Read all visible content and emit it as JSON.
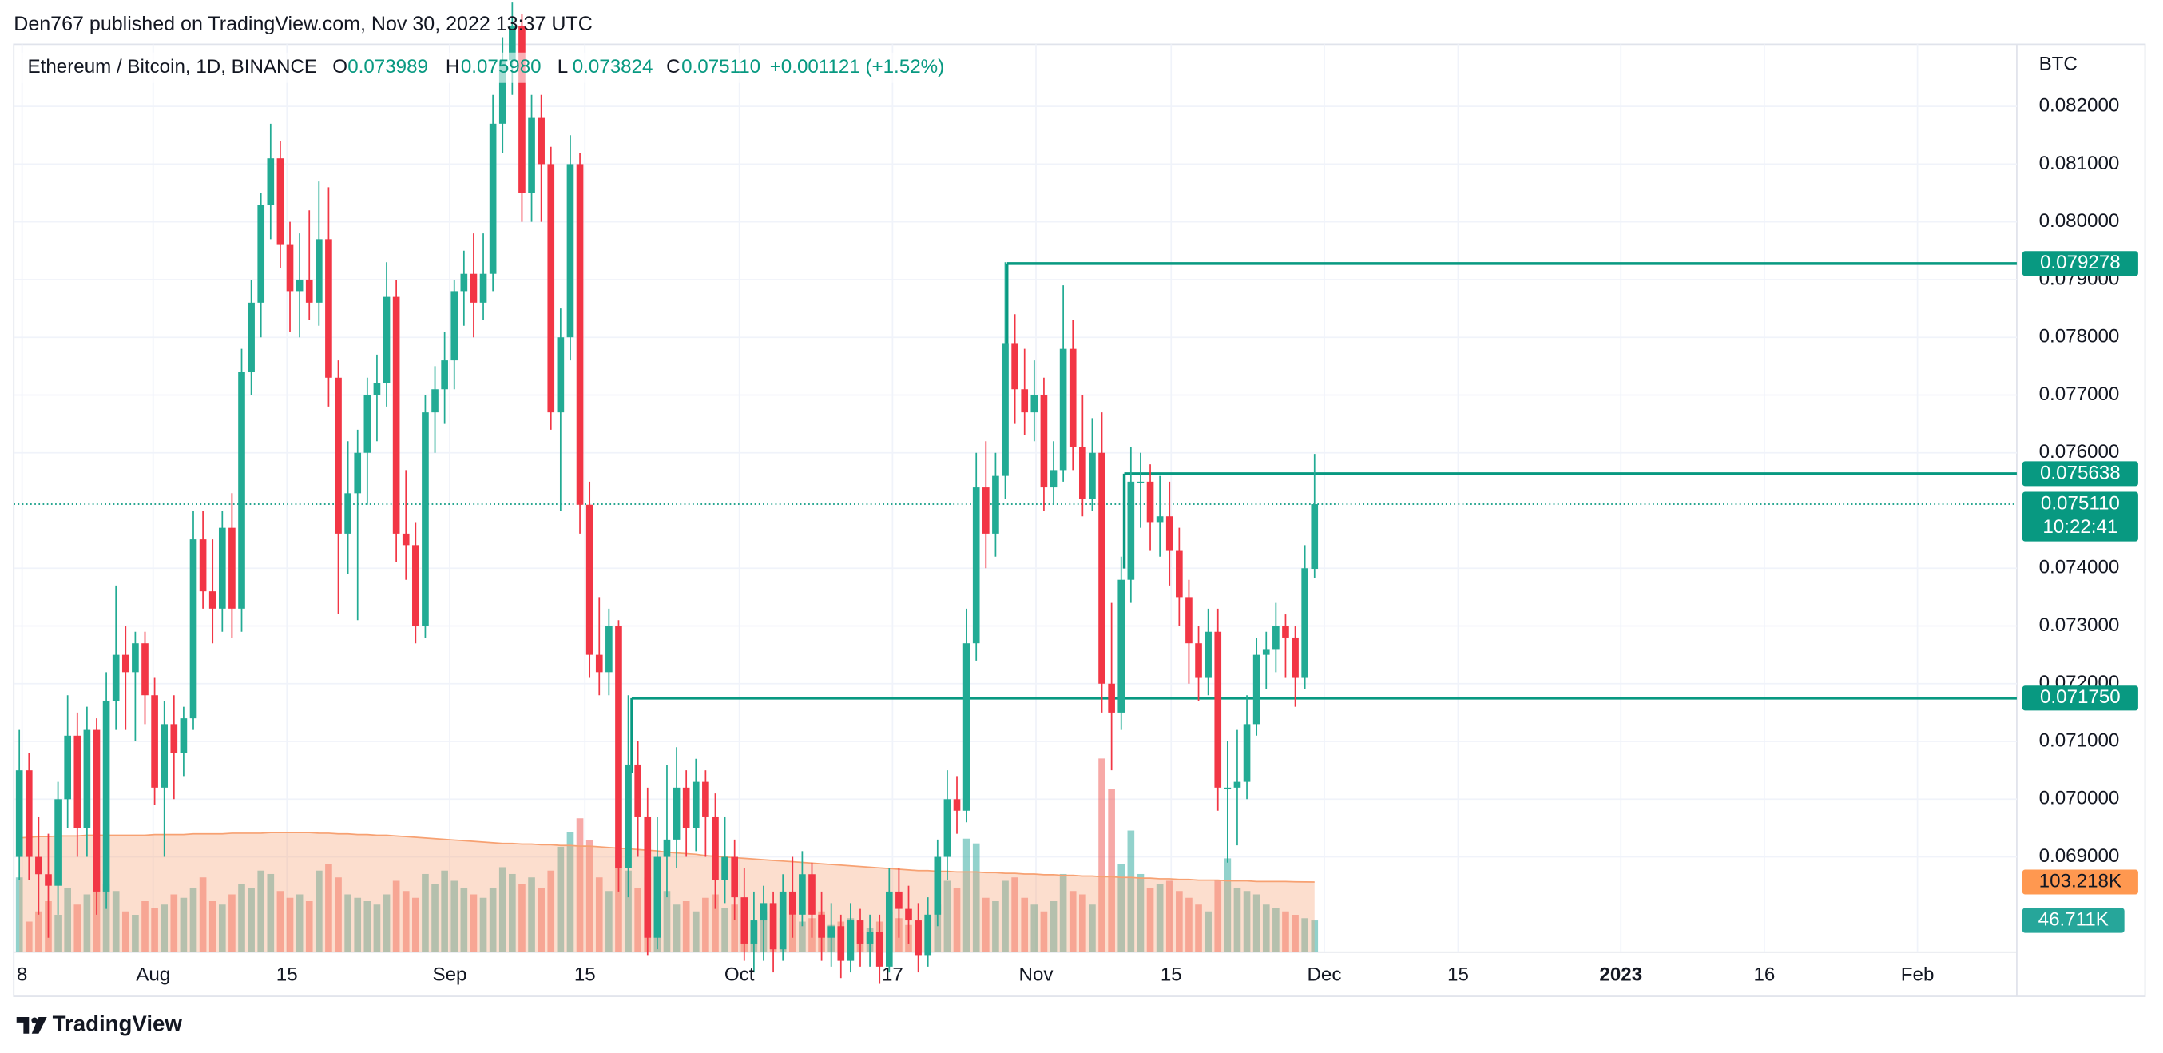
{
  "header": "Den767 published on TradingView.com, Nov 30, 2022 13:37 UTC",
  "footer": "TradingView",
  "chart_data": {
    "type": "candlestick",
    "legend": {
      "symbol": "Ethereum / Bitcoin, 1D, BINANCE",
      "open_label": "O",
      "open": "0.073989",
      "high_label": "H",
      "high": "0.075980",
      "low_label": "L",
      "low": "0.073824",
      "close_label": "C",
      "close": "0.075110",
      "change": "+0.001121 (+1.52%)"
    },
    "y_unit": "BTC",
    "ylim": [
      0.06735,
      0.083076
    ],
    "yticks": [
      {
        "value": 0.069,
        "label": "0.069000"
      },
      {
        "value": 0.07,
        "label": "0.070000"
      },
      {
        "value": 0.071,
        "label": "0.071000"
      },
      {
        "value": 0.072,
        "label": "0.072000"
      },
      {
        "value": 0.073,
        "label": "0.073000"
      },
      {
        "value": 0.074,
        "label": "0.074000"
      },
      {
        "value": 0.076,
        "label": "0.076000"
      },
      {
        "value": 0.077,
        "label": "0.077000"
      },
      {
        "value": 0.078,
        "label": "0.078000"
      },
      {
        "value": 0.079,
        "label": "0.079000"
      },
      {
        "value": 0.08,
        "label": "0.080000"
      },
      {
        "value": 0.081,
        "label": "0.081000"
      },
      {
        "value": 0.082,
        "label": "0.082000"
      }
    ],
    "xticks": [
      "8",
      "Aug",
      "15",
      "Sep",
      "15",
      "Oct",
      "17",
      "Nov",
      "15",
      "Dec",
      "15",
      "2023",
      "16",
      "Feb"
    ],
    "grid": true,
    "up_color": "#22ab94",
    "down_color": "#f23645",
    "candles": [
      [
        0.069,
        0.0712,
        0.0686,
        0.0705
      ],
      [
        0.0705,
        0.0708,
        0.0686,
        0.069
      ],
      [
        0.069,
        0.0697,
        0.068,
        0.0687
      ],
      [
        0.0687,
        0.0694,
        0.0676,
        0.0685
      ],
      [
        0.0685,
        0.0703,
        0.068,
        0.07
      ],
      [
        0.07,
        0.0718,
        0.0695,
        0.0711
      ],
      [
        0.0711,
        0.0715,
        0.069,
        0.0695
      ],
      [
        0.0695,
        0.0716,
        0.069,
        0.0712
      ],
      [
        0.0712,
        0.0714,
        0.068,
        0.0684
      ],
      [
        0.0684,
        0.0722,
        0.0681,
        0.0717
      ],
      [
        0.0717,
        0.0737,
        0.0712,
        0.0725
      ],
      [
        0.0725,
        0.073,
        0.0712,
        0.0722
      ],
      [
        0.0722,
        0.0729,
        0.071,
        0.0727
      ],
      [
        0.0727,
        0.0729,
        0.0713,
        0.0718
      ],
      [
        0.0718,
        0.0721,
        0.0699,
        0.0702
      ],
      [
        0.0702,
        0.0717,
        0.069,
        0.0713
      ],
      [
        0.0713,
        0.0718,
        0.07,
        0.0708
      ],
      [
        0.0708,
        0.0716,
        0.0704,
        0.0714
      ],
      [
        0.0714,
        0.075,
        0.0712,
        0.0745
      ],
      [
        0.0745,
        0.075,
        0.0733,
        0.0736
      ],
      [
        0.0736,
        0.0745,
        0.0727,
        0.0733
      ],
      [
        0.0733,
        0.075,
        0.0729,
        0.0747
      ],
      [
        0.0747,
        0.0753,
        0.0728,
        0.0733
      ],
      [
        0.0733,
        0.0778,
        0.0729,
        0.0774
      ],
      [
        0.0774,
        0.079,
        0.077,
        0.0786
      ],
      [
        0.0786,
        0.0805,
        0.078,
        0.0803
      ],
      [
        0.0803,
        0.0817,
        0.0797,
        0.0811
      ],
      [
        0.0811,
        0.0814,
        0.0792,
        0.0796
      ],
      [
        0.0796,
        0.08,
        0.0781,
        0.0788
      ],
      [
        0.0788,
        0.0798,
        0.078,
        0.079
      ],
      [
        0.079,
        0.0802,
        0.0783,
        0.0786
      ],
      [
        0.0786,
        0.0807,
        0.0782,
        0.0797
      ],
      [
        0.0797,
        0.0806,
        0.0768,
        0.0773
      ],
      [
        0.0773,
        0.0776,
        0.0732,
        0.0746
      ],
      [
        0.0746,
        0.0762,
        0.0739,
        0.0753
      ],
      [
        0.0753,
        0.0764,
        0.0731,
        0.076
      ],
      [
        0.076,
        0.0773,
        0.0751,
        0.077
      ],
      [
        0.077,
        0.0777,
        0.0762,
        0.0772
      ],
      [
        0.0772,
        0.0793,
        0.0768,
        0.0787
      ],
      [
        0.0787,
        0.079,
        0.0741,
        0.0746
      ],
      [
        0.0746,
        0.0757,
        0.0738,
        0.0744
      ],
      [
        0.0744,
        0.0748,
        0.0727,
        0.073
      ],
      [
        0.073,
        0.077,
        0.0728,
        0.0767
      ],
      [
        0.0767,
        0.0775,
        0.076,
        0.0771
      ],
      [
        0.0771,
        0.0781,
        0.0765,
        0.0776
      ],
      [
        0.0776,
        0.079,
        0.0771,
        0.0788
      ],
      [
        0.0788,
        0.0795,
        0.0782,
        0.0791
      ],
      [
        0.0791,
        0.0798,
        0.078,
        0.0786
      ],
      [
        0.0786,
        0.0798,
        0.0783,
        0.0791
      ],
      [
        0.0791,
        0.0822,
        0.0788,
        0.0817
      ],
      [
        0.0817,
        0.0832,
        0.0812,
        0.0828
      ],
      [
        0.0828,
        0.0838,
        0.0822,
        0.0834
      ],
      [
        0.0834,
        0.0836,
        0.08,
        0.0805
      ],
      [
        0.0805,
        0.0822,
        0.08,
        0.0818
      ],
      [
        0.0818,
        0.0822,
        0.08,
        0.081
      ],
      [
        0.081,
        0.0813,
        0.0764,
        0.0767
      ],
      [
        0.0767,
        0.0785,
        0.075,
        0.078
      ],
      [
        0.078,
        0.0815,
        0.0776,
        0.081
      ],
      [
        0.081,
        0.0812,
        0.0746,
        0.0751
      ],
      [
        0.0751,
        0.0755,
        0.0721,
        0.0725
      ],
      [
        0.0725,
        0.0735,
        0.0718,
        0.0722
      ],
      [
        0.0722,
        0.0733,
        0.0718,
        0.073
      ],
      [
        0.073,
        0.0731,
        0.0684,
        0.0688
      ],
      [
        0.0688,
        0.0718,
        0.0683,
        0.0706
      ],
      [
        0.0706,
        0.071,
        0.069,
        0.0697
      ],
      [
        0.0697,
        0.0702,
        0.0673,
        0.0676
      ],
      [
        0.0676,
        0.0697,
        0.0674,
        0.069
      ],
      [
        0.069,
        0.0706,
        0.0683,
        0.0693
      ],
      [
        0.0693,
        0.0709,
        0.0688,
        0.0702
      ],
      [
        0.0702,
        0.0705,
        0.069,
        0.0695
      ],
      [
        0.0695,
        0.0707,
        0.0691,
        0.0703
      ],
      [
        0.0703,
        0.0705,
        0.069,
        0.0697
      ],
      [
        0.0697,
        0.0701,
        0.0681,
        0.0686
      ],
      [
        0.0686,
        0.0697,
        0.0682,
        0.069
      ],
      [
        0.069,
        0.0693,
        0.0679,
        0.0683
      ],
      [
        0.0683,
        0.0688,
        0.0672,
        0.0675
      ],
      [
        0.0675,
        0.0684,
        0.067,
        0.0679
      ],
      [
        0.0679,
        0.0685,
        0.0672,
        0.0682
      ],
      [
        0.0682,
        0.0684,
        0.067,
        0.0674
      ],
      [
        0.0674,
        0.0687,
        0.0672,
        0.0684
      ],
      [
        0.0684,
        0.069,
        0.0676,
        0.068
      ],
      [
        0.068,
        0.0691,
        0.0678,
        0.0687
      ],
      [
        0.0687,
        0.0689,
        0.0676,
        0.068
      ],
      [
        0.068,
        0.0684,
        0.0672,
        0.0676
      ],
      [
        0.0676,
        0.0682,
        0.0671,
        0.0678
      ],
      [
        0.0678,
        0.068,
        0.0669,
        0.0672
      ],
      [
        0.0672,
        0.0682,
        0.067,
        0.0679
      ],
      [
        0.0679,
        0.0681,
        0.0671,
        0.0675
      ],
      [
        0.0675,
        0.068,
        0.0671,
        0.0677
      ],
      [
        0.0677,
        0.068,
        0.0668,
        0.0671
      ],
      [
        0.0671,
        0.0688,
        0.067,
        0.0684
      ],
      [
        0.0684,
        0.0688,
        0.0676,
        0.0681
      ],
      [
        0.0681,
        0.0685,
        0.0675,
        0.0679
      ],
      [
        0.0679,
        0.0682,
        0.067,
        0.0673
      ],
      [
        0.0673,
        0.0683,
        0.0671,
        0.068
      ],
      [
        0.068,
        0.0693,
        0.0678,
        0.069
      ],
      [
        0.069,
        0.0705,
        0.0686,
        0.07
      ],
      [
        0.07,
        0.0704,
        0.0694,
        0.0698
      ],
      [
        0.0698,
        0.0733,
        0.0696,
        0.0727
      ],
      [
        0.0727,
        0.076,
        0.0724,
        0.0754
      ],
      [
        0.0754,
        0.0762,
        0.074,
        0.0746
      ],
      [
        0.0746,
        0.076,
        0.0742,
        0.0756
      ],
      [
        0.0756,
        0.0793,
        0.0752,
        0.0779
      ],
      [
        0.0779,
        0.0784,
        0.0765,
        0.0771
      ],
      [
        0.0771,
        0.0778,
        0.0763,
        0.0767
      ],
      [
        0.0767,
        0.0776,
        0.0762,
        0.077
      ],
      [
        0.077,
        0.0773,
        0.075,
        0.0754
      ],
      [
        0.0754,
        0.0762,
        0.0751,
        0.0757
      ],
      [
        0.0757,
        0.0789,
        0.0755,
        0.0778
      ],
      [
        0.0778,
        0.0783,
        0.0757,
        0.0761
      ],
      [
        0.0761,
        0.077,
        0.0749,
        0.0752
      ],
      [
        0.0752,
        0.0766,
        0.075,
        0.076
      ],
      [
        0.076,
        0.0767,
        0.0715,
        0.072
      ],
      [
        0.072,
        0.0734,
        0.0705,
        0.0715
      ],
      [
        0.0715,
        0.0742,
        0.0712,
        0.0738
      ],
      [
        0.0738,
        0.0761,
        0.0734,
        0.0755
      ],
      [
        0.0755,
        0.076,
        0.0747,
        0.0755
      ],
      [
        0.0755,
        0.0758,
        0.0743,
        0.0748
      ],
      [
        0.0748,
        0.0756,
        0.0742,
        0.0749
      ],
      [
        0.0749,
        0.0755,
        0.0737,
        0.0743
      ],
      [
        0.0743,
        0.0747,
        0.073,
        0.0735
      ],
      [
        0.0735,
        0.0738,
        0.072,
        0.0727
      ],
      [
        0.0727,
        0.073,
        0.0717,
        0.0721
      ],
      [
        0.0721,
        0.0733,
        0.0718,
        0.0729
      ],
      [
        0.0729,
        0.0733,
        0.0698,
        0.0702
      ],
      [
        0.0702,
        0.071,
        0.0689,
        0.0702
      ],
      [
        0.0702,
        0.0712,
        0.0692,
        0.0703
      ],
      [
        0.0703,
        0.0718,
        0.07,
        0.0713
      ],
      [
        0.0713,
        0.0728,
        0.0711,
        0.0725
      ],
      [
        0.0725,
        0.0729,
        0.0719,
        0.0726
      ],
      [
        0.0726,
        0.0734,
        0.0722,
        0.073
      ],
      [
        0.073,
        0.0732,
        0.0721,
        0.0728
      ],
      [
        0.0728,
        0.073,
        0.0716,
        0.0721
      ],
      [
        0.0721,
        0.0744,
        0.0719,
        0.074
      ],
      [
        0.073989,
        0.07598,
        0.073824,
        0.07511
      ]
    ],
    "volume": {
      "color_up": "rgba(38,166,154,0.5)",
      "color_down": "rgba(239,83,80,0.5)",
      "values": [
        110,
        45,
        60,
        75,
        55,
        95,
        70,
        85,
        120,
        100,
        90,
        60,
        55,
        75,
        65,
        70,
        85,
        80,
        95,
        110,
        75,
        70,
        85,
        100,
        95,
        120,
        115,
        90,
        80,
        85,
        75,
        120,
        130,
        110,
        85,
        80,
        75,
        70,
        85,
        105,
        90,
        80,
        115,
        100,
        120,
        105,
        95,
        85,
        80,
        95,
        125,
        115,
        100,
        110,
        95,
        120,
        155,
        177,
        197,
        165,
        110,
        90,
        150,
        120,
        95,
        110,
        80,
        90,
        70,
        75,
        60,
        80,
        85,
        65,
        70,
        55,
        45,
        60,
        70,
        50,
        55,
        45,
        50,
        60,
        40,
        45,
        50,
        30,
        35,
        45,
        60,
        50,
        40,
        45,
        55,
        70,
        105,
        95,
        167,
        160,
        80,
        75,
        105,
        110,
        80,
        70,
        60,
        75,
        115,
        90,
        85,
        70,
        285,
        240,
        130,
        179,
        115,
        95,
        100,
        105,
        90,
        80,
        70,
        60,
        105,
        138,
        95,
        90,
        85,
        70,
        65,
        60,
        55,
        50,
        46.711
      ]
    },
    "volume_ma": {
      "color": "#f7a172",
      "values": [
        168,
        169,
        170,
        170,
        171,
        171,
        171,
        172,
        172,
        172,
        172,
        172,
        172,
        172,
        173,
        173,
        173,
        173,
        174,
        174,
        174,
        174,
        175,
        175,
        175,
        175,
        176,
        176,
        176,
        176,
        176,
        175,
        175,
        174,
        174,
        173,
        173,
        172,
        172,
        171,
        170,
        169,
        168,
        167,
        166,
        165,
        164,
        163,
        162,
        161,
        160,
        160,
        159,
        159,
        158,
        158,
        157,
        157,
        156,
        156,
        155,
        154,
        153,
        152,
        151,
        150,
        149,
        147,
        146,
        145,
        144,
        142,
        141,
        140,
        139,
        138,
        137,
        136,
        135,
        134,
        133,
        132,
        131,
        130,
        129,
        128,
        127,
        126,
        125,
        124,
        123,
        122,
        121,
        120,
        120,
        119,
        119,
        118,
        118,
        118,
        117,
        117,
        116,
        116,
        115,
        115,
        114,
        114,
        113,
        113,
        112,
        112,
        111,
        111,
        110,
        110,
        109,
        109,
        108,
        108,
        107,
        107,
        106,
        106,
        106,
        105,
        105,
        105,
        104,
        104,
        104,
        104,
        103.5,
        103.3,
        103.218
      ]
    },
    "volume_lim": [
      0,
      1336
    ],
    "volume_labels": {
      "volume": "46.711K",
      "volume_ma": "103.218K"
    },
    "levels": [
      {
        "value": 0.079278,
        "label": "0.079278"
      },
      {
        "value": 0.075638,
        "label": "0.075638"
      },
      {
        "value": 0.07175,
        "label": "0.071750"
      }
    ],
    "level_color": "#089981",
    "last_price": {
      "value": 0.07511,
      "label": "0.075110",
      "countdown": "10:22:41"
    }
  }
}
